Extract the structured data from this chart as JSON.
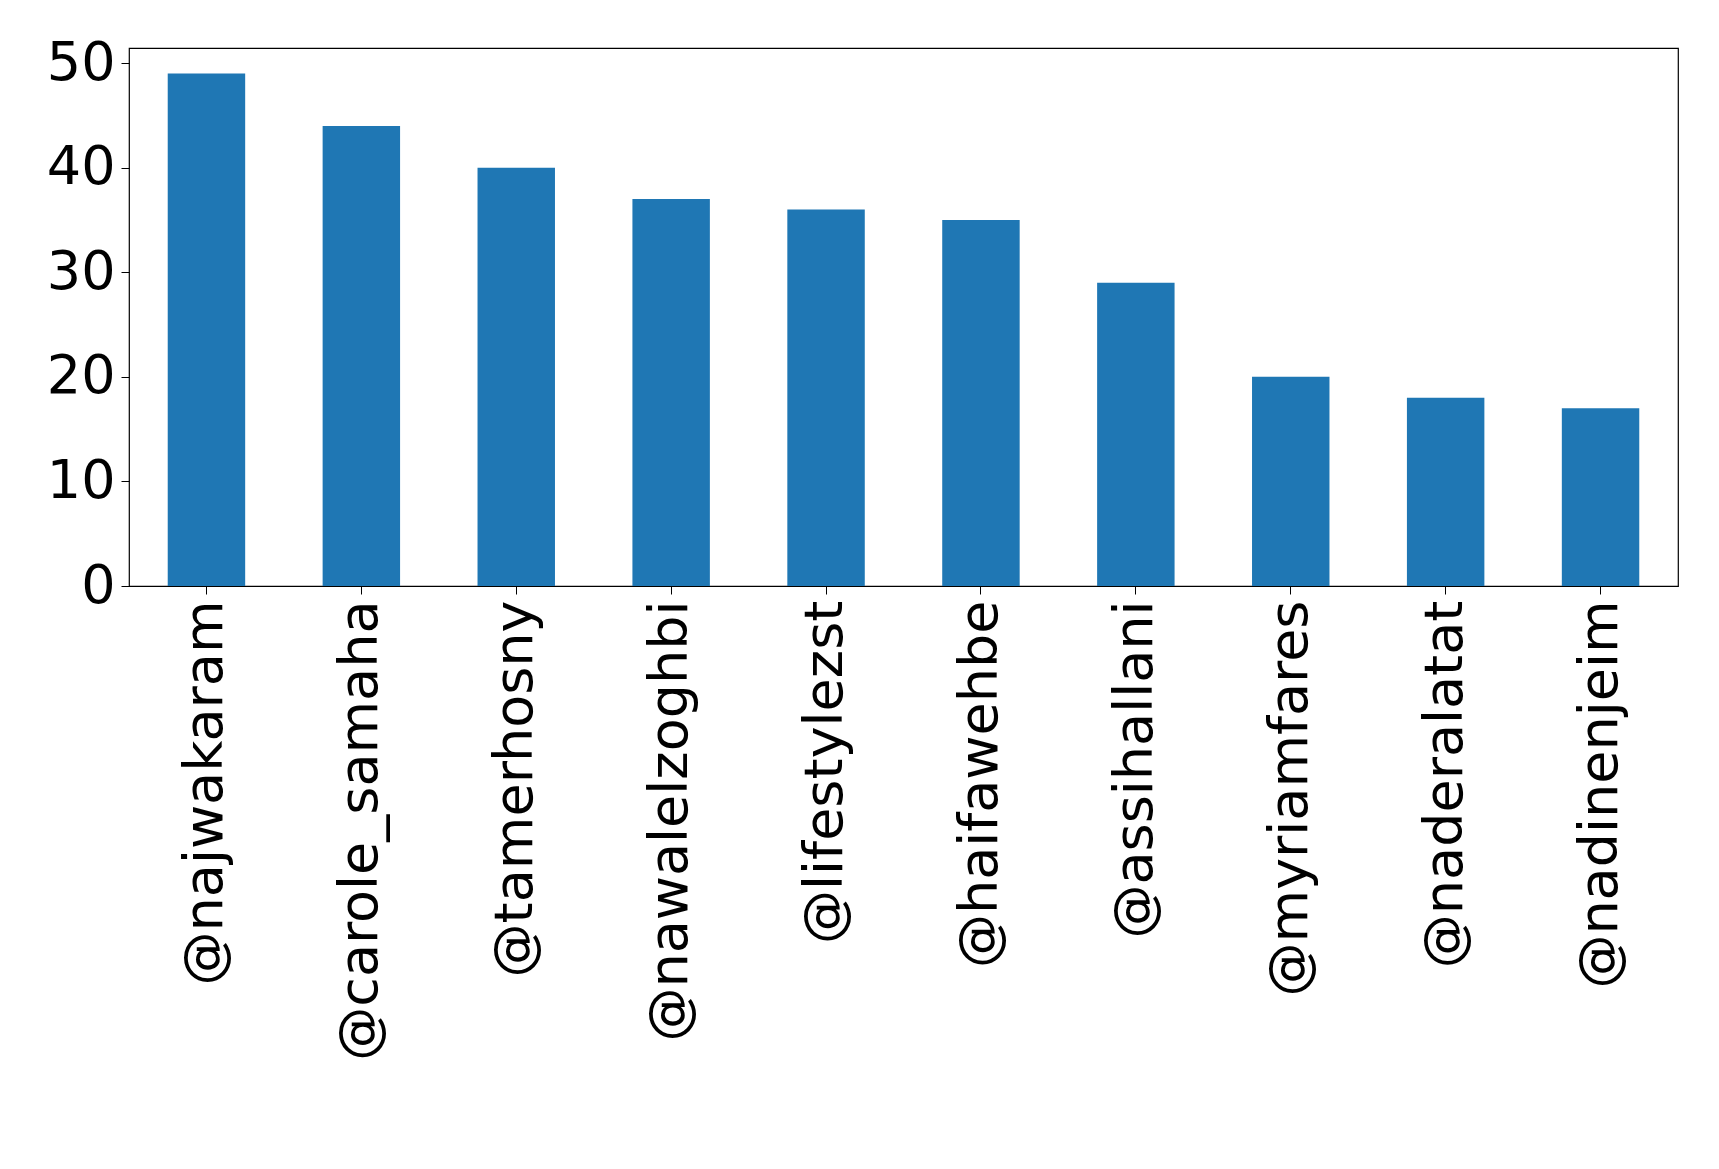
{
  "chart_data": {
    "type": "bar",
    "categories": [
      "@najwakaram",
      "@carole_samaha",
      "@tamerhosny",
      "@nawalelzoghbi",
      "@lifestylezst",
      "@haifawehbe",
      "@assihallani",
      "@myriamfares",
      "@naderalatat",
      "@nadinenjeim"
    ],
    "values": [
      49,
      44,
      40,
      37,
      36,
      35,
      29,
      20,
      18,
      17
    ],
    "color": "#1f77b4",
    "ylim": [
      0,
      51.45
    ],
    "yticks": [
      0,
      10,
      20,
      30,
      40,
      50
    ],
    "grid": false
  }
}
